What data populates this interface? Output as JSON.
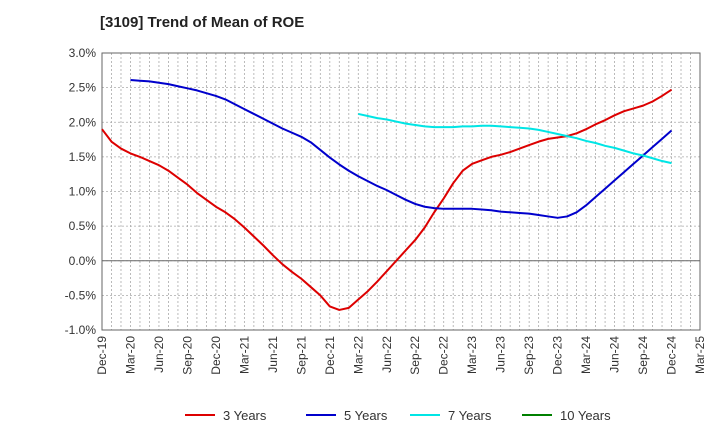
{
  "chart_data": {
    "type": "line",
    "title": "[3109]  Trend of Mean of ROE",
    "xlabel": "",
    "ylabel": "",
    "ylim": [
      -1.0,
      3.0
    ],
    "yticks": [
      "3.0%",
      "2.5%",
      "2.0%",
      "1.5%",
      "1.0%",
      "0.5%",
      "0.0%",
      "-0.5%",
      "-1.0%"
    ],
    "ytick_values": [
      3.0,
      2.5,
      2.0,
      1.5,
      1.0,
      0.5,
      0.0,
      -0.5,
      -1.0
    ],
    "x_labels": [
      "Dec-19",
      "Mar-20",
      "Jun-20",
      "Sep-20",
      "Dec-20",
      "Mar-21",
      "Jun-21",
      "Sep-21",
      "Dec-21",
      "Mar-22",
      "Jun-22",
      "Sep-22",
      "Dec-22",
      "Mar-23",
      "Jun-23",
      "Sep-23",
      "Dec-23",
      "Mar-24",
      "Jun-24",
      "Sep-24",
      "Dec-24",
      "Mar-25"
    ],
    "grid": true,
    "legend_position": "bottom",
    "series": [
      {
        "name": "3 Years",
        "color": "#dd0000",
        "points": [
          [
            "Dec-19",
            1.9
          ],
          [
            "Jan-20",
            1.72
          ],
          [
            "Feb-20",
            1.62
          ],
          [
            "Mar-20",
            1.55
          ],
          [
            "Apr-20",
            1.5
          ],
          [
            "May-20",
            1.44
          ],
          [
            "Jun-20",
            1.38
          ],
          [
            "Jul-20",
            1.3
          ],
          [
            "Aug-20",
            1.2
          ],
          [
            "Sep-20",
            1.1
          ],
          [
            "Oct-20",
            0.98
          ],
          [
            "Nov-20",
            0.88
          ],
          [
            "Dec-20",
            0.78
          ],
          [
            "Jan-21",
            0.7
          ],
          [
            "Feb-21",
            0.6
          ],
          [
            "Mar-21",
            0.48
          ],
          [
            "Apr-21",
            0.35
          ],
          [
            "May-21",
            0.22
          ],
          [
            "Jun-21",
            0.08
          ],
          [
            "Jul-21",
            -0.05
          ],
          [
            "Aug-21",
            -0.16
          ],
          [
            "Sep-21",
            -0.26
          ],
          [
            "Oct-21",
            -0.38
          ],
          [
            "Nov-21",
            -0.5
          ],
          [
            "Dec-21",
            -0.66
          ],
          [
            "Jan-22",
            -0.71
          ],
          [
            "Feb-22",
            -0.68
          ],
          [
            "Mar-22",
            -0.56
          ],
          [
            "Apr-22",
            -0.44
          ],
          [
            "May-22",
            -0.3
          ],
          [
            "Jun-22",
            -0.15
          ],
          [
            "Jul-22",
            0.0
          ],
          [
            "Aug-22",
            0.15
          ],
          [
            "Sep-22",
            0.3
          ],
          [
            "Oct-22",
            0.48
          ],
          [
            "Nov-22",
            0.7
          ],
          [
            "Dec-22",
            0.9
          ],
          [
            "Jan-23",
            1.12
          ],
          [
            "Feb-23",
            1.3
          ],
          [
            "Mar-23",
            1.4
          ],
          [
            "Apr-23",
            1.45
          ],
          [
            "May-23",
            1.5
          ],
          [
            "Jun-23",
            1.53
          ],
          [
            "Jul-23",
            1.57
          ],
          [
            "Aug-23",
            1.62
          ],
          [
            "Sep-23",
            1.67
          ],
          [
            "Oct-23",
            1.72
          ],
          [
            "Nov-23",
            1.76
          ],
          [
            "Dec-23",
            1.78
          ],
          [
            "Jan-24",
            1.8
          ],
          [
            "Feb-24",
            1.84
          ],
          [
            "Mar-24",
            1.9
          ],
          [
            "Apr-24",
            1.97
          ],
          [
            "May-24",
            2.03
          ],
          [
            "Jun-24",
            2.1
          ],
          [
            "Jul-24",
            2.16
          ],
          [
            "Aug-24",
            2.2
          ],
          [
            "Sep-24",
            2.24
          ],
          [
            "Oct-24",
            2.3
          ],
          [
            "Nov-24",
            2.38
          ],
          [
            "Dec-24",
            2.47
          ]
        ]
      },
      {
        "name": "5 Years",
        "color": "#0000cc",
        "points": [
          [
            "Mar-20",
            2.61
          ],
          [
            "Apr-20",
            2.6
          ],
          [
            "May-20",
            2.59
          ],
          [
            "Jun-20",
            2.57
          ],
          [
            "Jul-20",
            2.55
          ],
          [
            "Aug-20",
            2.52
          ],
          [
            "Sep-20",
            2.49
          ],
          [
            "Oct-20",
            2.46
          ],
          [
            "Nov-20",
            2.42
          ],
          [
            "Dec-20",
            2.38
          ],
          [
            "Jan-21",
            2.33
          ],
          [
            "Feb-21",
            2.26
          ],
          [
            "Mar-21",
            2.19
          ],
          [
            "Apr-21",
            2.12
          ],
          [
            "May-21",
            2.05
          ],
          [
            "Jun-21",
            1.98
          ],
          [
            "Jul-21",
            1.91
          ],
          [
            "Aug-21",
            1.85
          ],
          [
            "Sep-21",
            1.79
          ],
          [
            "Oct-21",
            1.71
          ],
          [
            "Nov-21",
            1.6
          ],
          [
            "Dec-21",
            1.49
          ],
          [
            "Jan-22",
            1.39
          ],
          [
            "Feb-22",
            1.3
          ],
          [
            "Mar-22",
            1.22
          ],
          [
            "Apr-22",
            1.15
          ],
          [
            "May-22",
            1.08
          ],
          [
            "Jun-22",
            1.02
          ],
          [
            "Jul-22",
            0.95
          ],
          [
            "Aug-22",
            0.88
          ],
          [
            "Sep-22",
            0.82
          ],
          [
            "Oct-22",
            0.78
          ],
          [
            "Nov-22",
            0.76
          ],
          [
            "Dec-22",
            0.75
          ],
          [
            "Jan-23",
            0.75
          ],
          [
            "Feb-23",
            0.75
          ],
          [
            "Mar-23",
            0.75
          ],
          [
            "Apr-23",
            0.74
          ],
          [
            "May-23",
            0.73
          ],
          [
            "Jun-23",
            0.71
          ],
          [
            "Jul-23",
            0.7
          ],
          [
            "Aug-23",
            0.69
          ],
          [
            "Sep-23",
            0.68
          ],
          [
            "Oct-23",
            0.66
          ],
          [
            "Nov-23",
            0.64
          ],
          [
            "Dec-23",
            0.62
          ],
          [
            "Jan-24",
            0.64
          ],
          [
            "Feb-24",
            0.7
          ],
          [
            "Mar-24",
            0.8
          ],
          [
            "Apr-24",
            0.92
          ],
          [
            "May-24",
            1.04
          ],
          [
            "Jun-24",
            1.16
          ],
          [
            "Jul-24",
            1.28
          ],
          [
            "Aug-24",
            1.4
          ],
          [
            "Sep-24",
            1.52
          ],
          [
            "Oct-24",
            1.64
          ],
          [
            "Nov-24",
            1.76
          ],
          [
            "Dec-24",
            1.88
          ]
        ]
      },
      {
        "name": "7 Years",
        "color": "#00e5e5",
        "points": [
          [
            "Mar-22",
            2.12
          ],
          [
            "Apr-22",
            2.09
          ],
          [
            "May-22",
            2.06
          ],
          [
            "Jun-22",
            2.04
          ],
          [
            "Jul-22",
            2.01
          ],
          [
            "Aug-22",
            1.98
          ],
          [
            "Sep-22",
            1.96
          ],
          [
            "Oct-22",
            1.94
          ],
          [
            "Nov-22",
            1.93
          ],
          [
            "Dec-22",
            1.93
          ],
          [
            "Jan-23",
            1.93
          ],
          [
            "Feb-23",
            1.94
          ],
          [
            "Mar-23",
            1.94
          ],
          [
            "Apr-23",
            1.95
          ],
          [
            "May-23",
            1.95
          ],
          [
            "Jun-23",
            1.94
          ],
          [
            "Jul-23",
            1.93
          ],
          [
            "Aug-23",
            1.92
          ],
          [
            "Sep-23",
            1.91
          ],
          [
            "Oct-23",
            1.89
          ],
          [
            "Nov-23",
            1.86
          ],
          [
            "Dec-23",
            1.83
          ],
          [
            "Jan-24",
            1.8
          ],
          [
            "Feb-24",
            1.77
          ],
          [
            "Mar-24",
            1.73
          ],
          [
            "Apr-24",
            1.7
          ],
          [
            "May-24",
            1.66
          ],
          [
            "Jun-24",
            1.63
          ],
          [
            "Jul-24",
            1.59
          ],
          [
            "Aug-24",
            1.55
          ],
          [
            "Sep-24",
            1.52
          ],
          [
            "Oct-24",
            1.48
          ],
          [
            "Nov-24",
            1.44
          ],
          [
            "Dec-24",
            1.41
          ]
        ]
      },
      {
        "name": "10 Years",
        "color": "#008000",
        "points": []
      }
    ]
  }
}
